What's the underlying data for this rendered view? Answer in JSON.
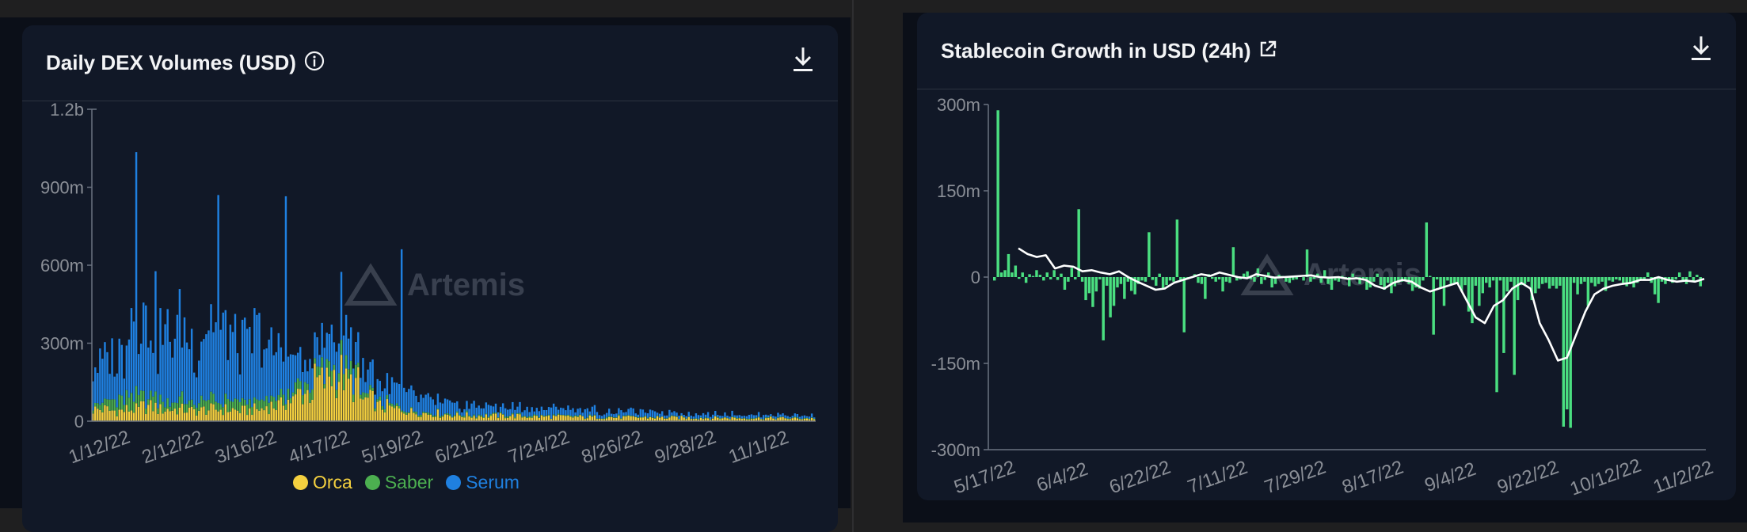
{
  "colors": {
    "orca": "#f4d03f",
    "saber": "#4caf50",
    "serum": "#1f80e0",
    "growth_bar": "#4ade80",
    "growth_line": "#ffffff",
    "watermark": "#5b6270"
  },
  "watermark": "Artemis",
  "left_card": {
    "title": "Daily DEX Volumes (USD)",
    "info_icon": "info-icon",
    "download_icon": "download-icon"
  },
  "right_card": {
    "title": "Stablecoin Growth in USD (24h)",
    "link_icon": "external-link-icon",
    "download_icon": "download-icon"
  },
  "chart_data": [
    {
      "type": "bar",
      "stacked": true,
      "title": "Daily DEX Volumes (USD)",
      "x_tick_labels": [
        "1/12/22",
        "2/12/22",
        "3/16/22",
        "4/17/22",
        "5/19/22",
        "6/21/22",
        "7/24/22",
        "8/26/22",
        "9/28/22",
        "11/1/22"
      ],
      "y_tick_labels": [
        "0",
        "300m",
        "600m",
        "900m",
        "1.2b"
      ],
      "ylim": [
        0,
        1200000000
      ],
      "grid": false,
      "legend_position": "bottom",
      "series": [
        {
          "name": "Orca",
          "color": "#f4d03f",
          "weekly_avg_millions": [
            45,
            40,
            45,
            55,
            45,
            45,
            40,
            45,
            45,
            40,
            45,
            60,
            80,
            110,
            150,
            180,
            140,
            80,
            55,
            45,
            35,
            30,
            25,
            22,
            20,
            20,
            20,
            18,
            17,
            17,
            16,
            15,
            15,
            14,
            14,
            14,
            13,
            13,
            12,
            12,
            12,
            11,
            11,
            11,
            10,
            10
          ]
        },
        {
          "name": "Saber",
          "color": "#4caf50",
          "weekly_avg_millions": [
            25,
            40,
            45,
            40,
            35,
            35,
            30,
            35,
            35,
            30,
            30,
            30,
            30,
            30,
            35,
            40,
            35,
            20,
            12,
            10,
            8,
            6,
            5,
            5,
            4,
            4,
            4,
            4,
            3,
            3,
            3,
            3,
            3,
            3,
            2,
            2,
            2,
            2,
            2,
            2,
            2,
            2,
            2,
            2,
            2,
            2
          ]
        },
        {
          "name": "Serum",
          "color": "#1f80e0",
          "weekly_avg_millions": [
            150,
            170,
            330,
            300,
            250,
            280,
            230,
            300,
            260,
            210,
            250,
            180,
            130,
            90,
            90,
            180,
            120,
            90,
            70,
            70,
            60,
            50,
            40,
            30,
            40,
            30,
            30,
            30,
            25,
            30,
            25,
            25,
            20,
            20,
            20,
            18,
            18,
            15,
            15,
            15,
            15,
            12,
            12,
            12,
            10,
            10
          ]
        }
      ],
      "notable_peaks": [
        {
          "x": "1/28/22",
          "total_millions": 1020
        },
        {
          "x": "3/7/22",
          "total_millions": 900
        },
        {
          "x": "4/7/22",
          "total_millions": 880
        },
        {
          "x": "5/13/22",
          "total_millions": 800
        }
      ]
    },
    {
      "type": "bar",
      "title": "Stablecoin Growth in USD (24h)",
      "x_tick_labels": [
        "5/17/22",
        "6/4/22",
        "6/22/22",
        "7/11/22",
        "7/29/22",
        "8/17/22",
        "9/4/22",
        "9/22/22",
        "10/12/22",
        "11/2/22"
      ],
      "y_tick_labels": [
        "300m",
        "150m",
        "0",
        "-150m",
        "-300m"
      ],
      "ylim": [
        -300000000,
        300000000
      ],
      "grid": false,
      "series": [
        {
          "name": "",
          "color": "#4ade80",
          "type": "bar",
          "values_millions": [
            -6,
            290,
            8,
            12,
            40,
            8,
            20,
            -3,
            8,
            -10,
            5,
            2,
            12,
            4,
            -6,
            8,
            -4,
            12,
            -5,
            6,
            -22,
            -8,
            16,
            -4,
            118,
            -8,
            -40,
            -28,
            -52,
            -25,
            -4,
            -110,
            -15,
            -70,
            -50,
            -18,
            -12,
            -38,
            -8,
            -24,
            -30,
            -12,
            -6,
            -8,
            78,
            -5,
            -15,
            6,
            -20,
            -14,
            -6,
            -8,
            100,
            -5,
            -96,
            -4,
            -2,
            5,
            -10,
            -12,
            -38,
            5,
            -3,
            -8,
            -4,
            -25,
            -8,
            -10,
            52,
            -6,
            -4,
            6,
            10,
            -4,
            -8,
            15,
            -12,
            -5,
            8,
            -18,
            -12,
            4,
            2,
            -8,
            -10,
            -5,
            -4,
            2,
            -6,
            48,
            -8,
            -3,
            6,
            -10,
            12,
            -12,
            -22,
            -6,
            -8,
            2,
            -4,
            -16,
            6,
            -3,
            -12,
            -4,
            -22,
            -18,
            -8,
            6,
            -14,
            -22,
            -10,
            -28,
            -16,
            -10,
            -8,
            -6,
            -12,
            -24,
            -18,
            -20,
            -6,
            95,
            2,
            -100,
            -4,
            -20,
            -50,
            -6,
            -14,
            -10,
            -12,
            -25,
            -14,
            -60,
            -80,
            -15,
            -50,
            -28,
            -10,
            -18,
            -6,
            -200,
            -6,
            -132,
            -25,
            -8,
            -170,
            -40,
            -14,
            -12,
            -8,
            -40,
            -28,
            -20,
            -12,
            -10,
            -20,
            -15,
            -20,
            -15,
            -260,
            -230,
            -262,
            -10,
            -30,
            -12,
            -8,
            -50,
            -10,
            -16,
            -12,
            -8,
            -24,
            -6,
            -8,
            -4,
            -6,
            -10,
            -16,
            -12,
            -18,
            -10,
            -5,
            -4,
            8,
            -10,
            -30,
            -45,
            -8,
            -12,
            -6,
            -10,
            -4,
            8,
            -6,
            -12,
            10,
            -8,
            4,
            -16
          ]
        },
        {
          "name": "",
          "color": "#ffffff",
          "type": "line",
          "values_millions": [
            50,
            40,
            35,
            38,
            15,
            20,
            18,
            10,
            12,
            8,
            5,
            10,
            0,
            -8,
            -15,
            -22,
            -20,
            -10,
            -5,
            0,
            5,
            2,
            8,
            4,
            0,
            -2,
            5,
            2,
            -1,
            0,
            1,
            2,
            3,
            0,
            -1,
            0,
            -3,
            -2,
            -5,
            -15,
            -20,
            -10,
            -5,
            -8,
            -18,
            -25,
            -20,
            -15,
            -10,
            -40,
            -70,
            -80,
            -50,
            -40,
            -20,
            -10,
            -20,
            -80,
            -110,
            -145,
            -140,
            -100,
            -60,
            -30,
            -20,
            -15,
            -12,
            -10,
            -5,
            -5,
            0,
            -5,
            -8,
            -6,
            -8,
            -3
          ]
        }
      ]
    }
  ]
}
